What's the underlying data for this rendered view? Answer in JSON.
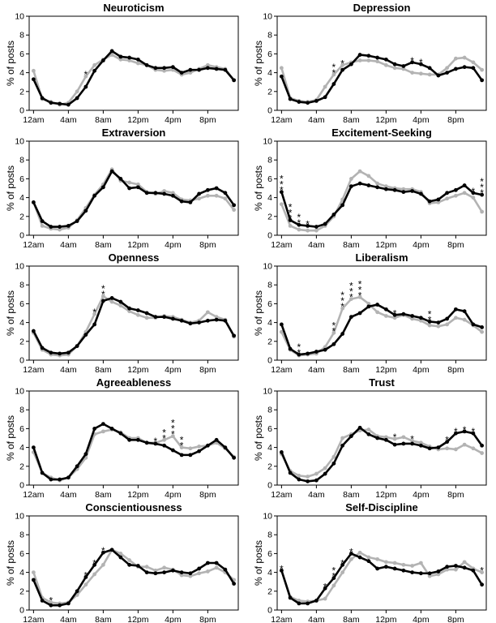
{
  "figure": {
    "ylabel": "% of posts",
    "x_ticks": [
      "12am",
      "4am",
      "8am",
      "12pm",
      "4pm",
      "8pm"
    ],
    "y_ticks": [
      "0",
      "2",
      "4",
      "6",
      "8",
      "10"
    ],
    "colors": {
      "dark": "#000000",
      "light": "#b3b3b3"
    }
  },
  "chart_data": [
    {
      "type": "line",
      "title": "Neuroticism",
      "ylim": [
        0,
        10
      ],
      "x": [
        0,
        1,
        2,
        3,
        4,
        5,
        6,
        7,
        8,
        9,
        10,
        11,
        12,
        13,
        14,
        15,
        16,
        17,
        18,
        19,
        20,
        21,
        22,
        23
      ],
      "series": [
        {
          "color": "#000000",
          "values": [
            3.3,
            1.3,
            0.8,
            0.7,
            0.6,
            1.3,
            2.5,
            4.2,
            5.3,
            6.3,
            5.7,
            5.6,
            5.4,
            4.8,
            4.5,
            4.5,
            4.6,
            4.0,
            4.3,
            4.3,
            4.5,
            4.4,
            4.3,
            3.2
          ]
        },
        {
          "color": "#b3b3b3",
          "values": [
            4.2,
            1.2,
            0.9,
            0.6,
            0.8,
            2.0,
            3.6,
            4.8,
            5.4,
            5.9,
            5.4,
            5.3,
            5.0,
            4.8,
            4.3,
            4.2,
            4.3,
            3.8,
            4.0,
            4.4,
            4.8,
            4.6,
            4.4,
            3.2
          ]
        }
      ],
      "significance": [
        {
          "hour": 6,
          "stars": "*"
        }
      ]
    },
    {
      "type": "line",
      "title": "Depression",
      "ylim": [
        0,
        10
      ],
      "x": [
        0,
        1,
        2,
        3,
        4,
        5,
        6,
        7,
        8,
        9,
        10,
        11,
        12,
        13,
        14,
        15,
        16,
        17,
        18,
        19,
        20,
        21,
        22,
        23
      ],
      "series": [
        {
          "color": "#000000",
          "values": [
            3.6,
            1.2,
            0.9,
            0.8,
            1.0,
            1.4,
            2.8,
            4.3,
            4.9,
            5.9,
            5.8,
            5.6,
            5.4,
            4.9,
            4.7,
            5.1,
            4.9,
            4.5,
            3.7,
            4.0,
            4.4,
            4.6,
            4.5,
            3.2
          ]
        },
        {
          "color": "#b3b3b3",
          "values": [
            4.5,
            1.3,
            1.0,
            0.9,
            1.1,
            2.5,
            3.8,
            4.8,
            5.1,
            5.3,
            5.3,
            5.2,
            4.8,
            4.5,
            4.4,
            4.0,
            3.9,
            3.8,
            3.8,
            4.5,
            5.5,
            5.6,
            5.1,
            4.3
          ]
        }
      ],
      "significance": [
        {
          "hour": 6,
          "stars": "**"
        },
        {
          "hour": 7,
          "stars": "*"
        },
        {
          "hour": 15,
          "stars": "*"
        },
        {
          "hour": 16,
          "stars": "*"
        }
      ]
    },
    {
      "type": "line",
      "title": "Extraversion",
      "ylim": [
        0,
        10
      ],
      "x": [
        0,
        1,
        2,
        3,
        4,
        5,
        6,
        7,
        8,
        9,
        10,
        11,
        12,
        13,
        14,
        15,
        16,
        17,
        18,
        19,
        20,
        21,
        22,
        23
      ],
      "series": [
        {
          "color": "#000000",
          "values": [
            3.5,
            1.5,
            0.9,
            0.9,
            1.0,
            1.5,
            2.6,
            4.2,
            5.1,
            6.8,
            6.0,
            5.0,
            5.1,
            4.5,
            4.5,
            4.4,
            4.2,
            3.6,
            3.5,
            4.4,
            4.8,
            5.0,
            4.5,
            3.2
          ]
        },
        {
          "color": "#b3b3b3",
          "values": [
            3.5,
            1.0,
            0.7,
            0.6,
            0.8,
            1.6,
            2.9,
            4.3,
            5.4,
            7.0,
            5.8,
            5.6,
            5.4,
            4.6,
            4.4,
            4.7,
            4.5,
            3.8,
            3.7,
            3.9,
            4.2,
            4.2,
            3.9,
            2.7
          ]
        }
      ],
      "significance": []
    },
    {
      "type": "line",
      "title": "Excitement-Seeking",
      "ylim": [
        0,
        10
      ],
      "x": [
        0,
        1,
        2,
        3,
        4,
        5,
        6,
        7,
        8,
        9,
        10,
        11,
        12,
        13,
        14,
        15,
        16,
        17,
        18,
        19,
        20,
        21,
        22,
        23
      ],
      "series": [
        {
          "color": "#000000",
          "values": [
            4.6,
            1.6,
            1.1,
            1.0,
            0.9,
            1.2,
            2.2,
            3.2,
            5.2,
            5.5,
            5.3,
            5.1,
            4.9,
            4.8,
            4.6,
            4.7,
            4.4,
            3.6,
            3.8,
            4.5,
            4.8,
            5.3,
            4.5,
            4.3
          ]
        },
        {
          "color": "#b3b3b3",
          "values": [
            3.3,
            1.0,
            0.6,
            0.5,
            0.5,
            1.0,
            2.0,
            3.8,
            6.0,
            6.8,
            6.3,
            5.5,
            5.2,
            5.0,
            4.9,
            4.9,
            4.6,
            3.4,
            3.5,
            3.9,
            4.2,
            4.5,
            4.0,
            2.5
          ]
        }
      ],
      "significance": [
        {
          "hour": 0,
          "stars": "***"
        },
        {
          "hour": 1,
          "stars": "***"
        },
        {
          "hour": 2,
          "stars": "**"
        },
        {
          "hour": 3,
          "stars": "*"
        },
        {
          "hour": 22,
          "stars": "*"
        },
        {
          "hour": 23,
          "stars": "***"
        }
      ]
    },
    {
      "type": "line",
      "title": "Openness",
      "ylim": [
        0,
        10
      ],
      "x": [
        0,
        1,
        2,
        3,
        4,
        5,
        6,
        7,
        8,
        9,
        10,
        11,
        12,
        13,
        14,
        15,
        16,
        17,
        18,
        19,
        20,
        21,
        22,
        23
      ],
      "series": [
        {
          "color": "#000000",
          "values": [
            3.1,
            1.3,
            0.8,
            0.7,
            0.8,
            1.5,
            2.7,
            3.8,
            6.3,
            6.6,
            6.2,
            5.5,
            5.3,
            5.0,
            4.6,
            4.6,
            4.4,
            4.2,
            3.9,
            4.0,
            4.2,
            4.3,
            4.2,
            2.6
          ]
        },
        {
          "color": "#b3b3b3",
          "values": [
            2.9,
            1.1,
            0.6,
            0.5,
            0.6,
            1.5,
            3.0,
            4.9,
            6.8,
            6.2,
            5.8,
            5.2,
            4.8,
            4.5,
            4.5,
            4.7,
            4.6,
            4.3,
            4.0,
            4.2,
            5.1,
            4.6,
            4.3,
            2.5
          ]
        }
      ],
      "significance": [
        {
          "hour": 7,
          "stars": "*"
        },
        {
          "hour": 8,
          "stars": "**"
        }
      ]
    },
    {
      "type": "line",
      "title": "Liberalism",
      "ylim": [
        0,
        10
      ],
      "x": [
        0,
        1,
        2,
        3,
        4,
        5,
        6,
        7,
        8,
        9,
        10,
        11,
        12,
        13,
        14,
        15,
        16,
        17,
        18,
        19,
        20,
        21,
        22,
        23
      ],
      "series": [
        {
          "color": "#000000",
          "values": [
            3.8,
            1.2,
            0.6,
            0.7,
            0.9,
            1.1,
            1.7,
            2.8,
            4.6,
            5.0,
            5.7,
            5.9,
            5.4,
            4.8,
            4.9,
            4.7,
            4.5,
            4.1,
            4.0,
            4.4,
            5.4,
            5.2,
            3.8,
            3.5
          ]
        },
        {
          "color": "#b3b3b3",
          "values": [
            3.0,
            1.1,
            0.5,
            0.6,
            0.7,
            1.4,
            2.9,
            5.5,
            6.5,
            6.7,
            6.0,
            5.1,
            4.7,
            4.5,
            4.8,
            4.4,
            4.2,
            3.7,
            3.6,
            3.8,
            4.5,
            4.3,
            3.7,
            3.0
          ]
        }
      ],
      "significance": [
        {
          "hour": 2,
          "stars": "**"
        },
        {
          "hour": 6,
          "stars": "**"
        },
        {
          "hour": 7,
          "stars": "***"
        },
        {
          "hour": 8,
          "stars": "***"
        },
        {
          "hour": 9,
          "stars": "***"
        },
        {
          "hour": 13,
          "stars": "*"
        },
        {
          "hour": 17,
          "stars": "**"
        }
      ]
    },
    {
      "type": "line",
      "title": "Agreeableness",
      "ylim": [
        0,
        10
      ],
      "x": [
        0,
        1,
        2,
        3,
        4,
        5,
        6,
        7,
        8,
        9,
        10,
        11,
        12,
        13,
        14,
        15,
        16,
        17,
        18,
        19,
        20,
        21,
        22,
        23
      ],
      "series": [
        {
          "color": "#000000",
          "values": [
            4.0,
            1.3,
            0.6,
            0.6,
            0.8,
            2.0,
            3.3,
            6.0,
            6.5,
            6.0,
            5.5,
            4.8,
            4.8,
            4.5,
            4.4,
            4.2,
            3.7,
            3.2,
            3.2,
            3.6,
            4.2,
            4.8,
            4.0,
            2.9
          ]
        },
        {
          "color": "#b3b3b3",
          "values": [
            3.5,
            1.3,
            0.8,
            0.5,
            0.8,
            1.7,
            2.9,
            5.4,
            5.7,
            5.9,
            5.6,
            5.0,
            5.0,
            4.5,
            4.5,
            4.8,
            5.2,
            4.0,
            3.9,
            4.1,
            4.2,
            4.5,
            3.9,
            3.0
          ]
        }
      ],
      "significance": [
        {
          "hour": 14,
          "stars": "*"
        },
        {
          "hour": 15,
          "stars": "**"
        },
        {
          "hour": 16,
          "stars": "***"
        },
        {
          "hour": 17,
          "stars": "**"
        }
      ]
    },
    {
      "type": "line",
      "title": "Trust",
      "ylim": [
        0,
        10
      ],
      "x": [
        0,
        1,
        2,
        3,
        4,
        5,
        6,
        7,
        8,
        9,
        10,
        11,
        12,
        13,
        14,
        15,
        16,
        17,
        18,
        19,
        20,
        21,
        22,
        23
      ],
      "series": [
        {
          "color": "#000000",
          "values": [
            3.5,
            1.3,
            0.6,
            0.4,
            0.5,
            1.2,
            2.3,
            4.2,
            5.2,
            6.1,
            5.4,
            5.0,
            4.8,
            4.3,
            4.4,
            4.4,
            4.2,
            3.9,
            4.0,
            4.6,
            5.5,
            5.7,
            5.5,
            4.2
          ]
        },
        {
          "color": "#b3b3b3",
          "values": [
            3.3,
            1.5,
            1.0,
            0.9,
            1.2,
            1.8,
            3.0,
            5.0,
            5.4,
            5.8,
            5.9,
            5.2,
            5.1,
            4.9,
            5.1,
            4.7,
            4.5,
            4.1,
            3.8,
            3.9,
            3.8,
            4.3,
            3.9,
            3.4
          ]
        }
      ],
      "significance": [
        {
          "hour": 13,
          "stars": "*"
        },
        {
          "hour": 15,
          "stars": "*"
        },
        {
          "hour": 19,
          "stars": "*"
        },
        {
          "hour": 20,
          "stars": "*"
        },
        {
          "hour": 21,
          "stars": "*"
        },
        {
          "hour": 22,
          "stars": "*"
        }
      ]
    },
    {
      "type": "line",
      "title": "Conscientiousness",
      "ylim": [
        0,
        10
      ],
      "x": [
        0,
        1,
        2,
        3,
        4,
        5,
        6,
        7,
        8,
        9,
        10,
        11,
        12,
        13,
        14,
        15,
        16,
        17,
        18,
        19,
        20,
        21,
        22,
        23
      ],
      "series": [
        {
          "color": "#000000",
          "values": [
            3.2,
            1.0,
            0.5,
            0.5,
            0.7,
            2.0,
            3.5,
            4.8,
            6.1,
            6.4,
            5.6,
            4.8,
            4.7,
            4.0,
            3.9,
            4.0,
            4.2,
            4.0,
            3.9,
            4.4,
            5.0,
            5.0,
            4.3,
            2.8
          ]
        },
        {
          "color": "#b3b3b3",
          "values": [
            4.0,
            1.3,
            0.8,
            0.7,
            0.8,
            1.6,
            2.7,
            3.8,
            4.8,
            6.4,
            6.0,
            5.3,
            4.6,
            4.6,
            4.2,
            4.5,
            4.3,
            3.7,
            3.6,
            3.9,
            4.1,
            4.5,
            4.0,
            3.2
          ]
        }
      ],
      "significance": [
        {
          "hour": 2,
          "stars": "*"
        },
        {
          "hour": 6,
          "stars": "*"
        },
        {
          "hour": 7,
          "stars": "*"
        },
        {
          "hour": 8,
          "stars": "*"
        }
      ]
    },
    {
      "type": "line",
      "title": "Self-Discipline",
      "ylim": [
        0,
        10
      ],
      "x": [
        0,
        1,
        2,
        3,
        4,
        5,
        6,
        7,
        8,
        9,
        10,
        11,
        12,
        13,
        14,
        15,
        16,
        17,
        18,
        19,
        20,
        21,
        22,
        23
      ],
      "series": [
        {
          "color": "#000000",
          "values": [
            4.2,
            1.3,
            0.7,
            0.7,
            1.0,
            2.3,
            3.4,
            4.8,
            6.0,
            5.6,
            5.2,
            4.4,
            4.6,
            4.4,
            4.2,
            4.0,
            3.9,
            3.9,
            4.1,
            4.6,
            4.7,
            4.5,
            4.2,
            2.7
          ]
        },
        {
          "color": "#b3b3b3",
          "values": [
            4.2,
            1.4,
            1.0,
            0.9,
            1.0,
            1.2,
            2.6,
            4.0,
            5.4,
            6.1,
            5.6,
            5.4,
            5.1,
            5.0,
            4.8,
            4.7,
            5.0,
            3.6,
            3.8,
            4.3,
            4.3,
            5.1,
            4.4,
            4.0
          ]
        }
      ],
      "significance": [
        {
          "hour": 0,
          "stars": "*"
        },
        {
          "hour": 5,
          "stars": "*"
        },
        {
          "hour": 6,
          "stars": "**"
        },
        {
          "hour": 7,
          "stars": "*"
        },
        {
          "hour": 8,
          "stars": "*"
        },
        {
          "hour": 23,
          "stars": "*"
        }
      ]
    }
  ]
}
